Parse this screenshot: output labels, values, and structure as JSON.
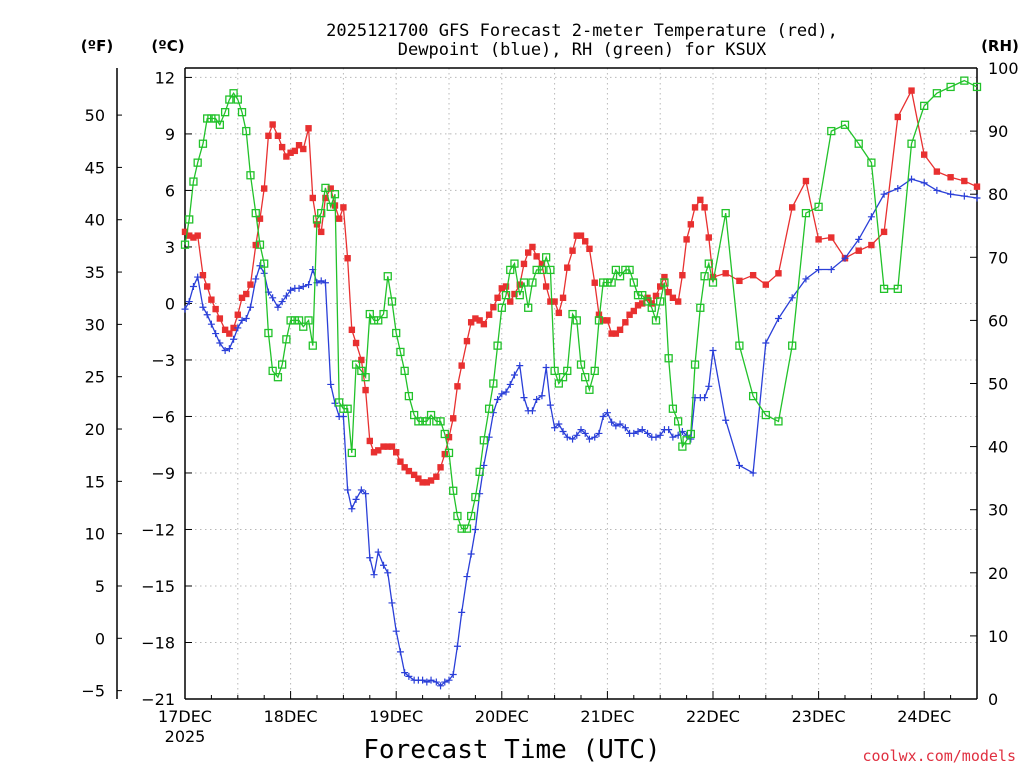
{
  "title_line1": "2025121700 GFS Forecast 2-meter Temperature (red),",
  "title_line2": "Dewpoint (blue), RH (green) for KSUX",
  "units": {
    "fahrenheit": "(ºF)",
    "celsius": "(ºC)",
    "rh": "(RH)"
  },
  "xlabel": "Forecast Time (UTC)",
  "credit": "coolwx.com/models",
  "colors": {
    "temperature": "#e83030",
    "dewpoint": "#2a3fd8",
    "rh": "#22c22a",
    "grid": "#b8b8b8",
    "credit": "#e03040"
  },
  "chart_data": {
    "type": "line",
    "title": "2025121700 GFS Forecast 2-meter Temperature (red), Dewpoint (blue), RH (green) for KSUX",
    "x_unit": "days since 2025-12-17 00 UTC",
    "xlim": [
      0,
      7.5
    ],
    "x_ticks": [
      {
        "x": 0,
        "label": "17DEC",
        "sublabel": "2025"
      },
      {
        "x": 1,
        "label": "18DEC"
      },
      {
        "x": 2,
        "label": "19DEC"
      },
      {
        "x": 3,
        "label": "20DEC"
      },
      {
        "x": 4,
        "label": "21DEC"
      },
      {
        "x": 5,
        "label": "22DEC"
      },
      {
        "x": 6,
        "label": "23DEC"
      },
      {
        "x": 7,
        "label": "24DEC"
      }
    ],
    "celsius_axis": {
      "min": -21,
      "max": 12.5,
      "ticks": [
        12,
        9,
        6,
        3,
        0,
        -3,
        -6,
        -9,
        -12,
        -15,
        -18,
        -21
      ],
      "labels": [
        "12",
        "9",
        "6",
        "3",
        "0",
        "−3",
        "−6",
        "−9",
        "−12",
        "−15",
        "−18",
        "−21"
      ]
    },
    "fahrenheit_axis": {
      "ticks": [
        50,
        45,
        40,
        35,
        30,
        25,
        20,
        15,
        10,
        5,
        0,
        -5
      ],
      "labels": [
        "50",
        "45",
        "40",
        "35",
        "30",
        "25",
        "20",
        "15",
        "10",
        "5",
        "0",
        "−5"
      ]
    },
    "rh_axis": {
      "min": 0,
      "max": 100,
      "ticks": [
        100,
        90,
        80,
        70,
        60,
        50,
        40,
        30,
        20,
        10,
        0
      ],
      "labels": [
        "100",
        "90",
        "80",
        "70",
        "60",
        "50",
        "40",
        "30",
        "20",
        "10",
        "0"
      ]
    },
    "series": [
      {
        "name": "Temperature",
        "unit": "C",
        "axis": "celsius",
        "marker": "filled-square",
        "x": [
          0,
          0.04,
          0.08,
          0.12,
          0.17,
          0.21,
          0.25,
          0.29,
          0.33,
          0.38,
          0.42,
          0.46,
          0.5,
          0.54,
          0.58,
          0.62,
          0.67,
          0.71,
          0.75,
          0.79,
          0.83,
          0.88,
          0.92,
          0.96,
          1.0,
          1.04,
          1.08,
          1.12,
          1.17,
          1.21,
          1.25,
          1.29,
          1.33,
          1.38,
          1.42,
          1.46,
          1.5,
          1.54,
          1.58,
          1.62,
          1.67,
          1.71,
          1.75,
          1.79,
          1.83,
          1.88,
          1.92,
          1.96,
          2.0,
          2.04,
          2.08,
          2.12,
          2.17,
          2.21,
          2.25,
          2.29,
          2.33,
          2.38,
          2.42,
          2.46,
          2.5,
          2.54,
          2.58,
          2.62,
          2.67,
          2.71,
          2.75,
          2.79,
          2.83,
          2.88,
          2.92,
          2.96,
          3.0,
          3.04,
          3.08,
          3.12,
          3.17,
          3.21,
          3.25,
          3.29,
          3.33,
          3.38,
          3.42,
          3.46,
          3.5,
          3.54,
          3.58,
          3.62,
          3.67,
          3.71,
          3.75,
          3.79,
          3.83,
          3.88,
          3.92,
          3.96,
          4.0,
          4.04,
          4.08,
          4.12,
          4.17,
          4.21,
          4.25,
          4.29,
          4.33,
          4.38,
          4.42,
          4.46,
          4.5,
          4.54,
          4.58,
          4.62,
          4.67,
          4.71,
          4.75,
          4.79,
          4.83,
          4.88,
          4.92,
          4.96,
          5.0,
          5.12,
          5.25,
          5.38,
          5.5,
          5.62,
          5.75,
          5.88,
          6.0,
          6.12,
          6.25,
          6.38,
          6.5,
          6.62,
          6.75,
          6.88,
          7.0,
          7.12,
          7.25,
          7.38,
          7.5
        ],
        "values": [
          3.8,
          3.6,
          3.5,
          3.6,
          1.5,
          0.9,
          0.2,
          -0.3,
          -0.8,
          -1.4,
          -1.6,
          -1.3,
          -0.6,
          0.3,
          0.5,
          1.0,
          3.1,
          4.5,
          6.1,
          8.9,
          9.5,
          8.9,
          8.3,
          7.8,
          8.0,
          8.1,
          8.4,
          8.2,
          9.3,
          5.6,
          4.2,
          3.8,
          5.6,
          6.1,
          5.2,
          4.5,
          5.1,
          2.4,
          -1.4,
          -2.1,
          -3.0,
          -4.6,
          -7.3,
          -7.9,
          -7.8,
          -7.6,
          -7.6,
          -7.6,
          -7.9,
          -8.4,
          -8.7,
          -8.9,
          -9.1,
          -9.3,
          -9.5,
          -9.5,
          -9.4,
          -9.2,
          -8.7,
          -8.0,
          -7.1,
          -6.1,
          -4.4,
          -3.3,
          -2.0,
          -1.0,
          -0.8,
          -0.9,
          -1.1,
          -0.6,
          -0.2,
          0.3,
          0.8,
          0.9,
          0.1,
          0.5,
          1.0,
          2.1,
          2.7,
          3.0,
          2.5,
          2.1,
          0.9,
          0.1,
          0.1,
          -0.5,
          0.3,
          1.9,
          2.8,
          3.6,
          3.6,
          3.3,
          2.9,
          1.1,
          -0.6,
          -0.9,
          -0.9,
          -1.6,
          -1.6,
          -1.4,
          -1.0,
          -0.6,
          -0.4,
          -0.1,
          0.0,
          0.3,
          0.0,
          0.4,
          0.9,
          1.4,
          0.6,
          0.3,
          0.1,
          1.5,
          3.4,
          4.2,
          5.1,
          5.5,
          5.1,
          3.5,
          1.4,
          1.6,
          1.2,
          1.5,
          1.0,
          1.6,
          5.1,
          6.5,
          3.4,
          3.5,
          2.4,
          2.8,
          3.1,
          3.8,
          9.9,
          11.3,
          7.9,
          7.0,
          6.7,
          6.5,
          6.2
        ]
      },
      {
        "name": "Dewpoint",
        "unit": "C",
        "axis": "celsius",
        "marker": "plus",
        "x": [
          0,
          0.04,
          0.08,
          0.12,
          0.17,
          0.21,
          0.25,
          0.29,
          0.33,
          0.38,
          0.42,
          0.46,
          0.5,
          0.54,
          0.58,
          0.62,
          0.67,
          0.71,
          0.75,
          0.79,
          0.83,
          0.88,
          0.92,
          0.96,
          1.0,
          1.04,
          1.08,
          1.12,
          1.17,
          1.21,
          1.25,
          1.29,
          1.33,
          1.38,
          1.42,
          1.46,
          1.5,
          1.54,
          1.58,
          1.62,
          1.67,
          1.71,
          1.75,
          1.79,
          1.83,
          1.88,
          1.92,
          1.96,
          2.0,
          2.04,
          2.08,
          2.12,
          2.17,
          2.21,
          2.25,
          2.29,
          2.33,
          2.38,
          2.42,
          2.46,
          2.5,
          2.54,
          2.58,
          2.62,
          2.67,
          2.71,
          2.75,
          2.79,
          2.83,
          2.88,
          2.92,
          2.96,
          3.0,
          3.04,
          3.08,
          3.12,
          3.17,
          3.21,
          3.25,
          3.29,
          3.33,
          3.38,
          3.42,
          3.46,
          3.5,
          3.54,
          3.58,
          3.62,
          3.67,
          3.71,
          3.75,
          3.79,
          3.83,
          3.88,
          3.92,
          3.96,
          4.0,
          4.04,
          4.08,
          4.12,
          4.17,
          4.21,
          4.25,
          4.29,
          4.33,
          4.38,
          4.42,
          4.46,
          4.5,
          4.54,
          4.58,
          4.62,
          4.67,
          4.71,
          4.75,
          4.79,
          4.83,
          4.88,
          4.92,
          4.96,
          5.0,
          5.12,
          5.25,
          5.38,
          5.5,
          5.62,
          5.75,
          5.88,
          6.0,
          6.12,
          6.25,
          6.38,
          6.5,
          6.62,
          6.75,
          6.88,
          7.0,
          7.12,
          7.25,
          7.38,
          7.5
        ],
        "values": [
          -0.3,
          0.1,
          0.9,
          1.4,
          -0.2,
          -0.6,
          -1.1,
          -1.6,
          -2.1,
          -2.5,
          -2.4,
          -1.9,
          -1.3,
          -0.9,
          -0.8,
          -0.2,
          1.3,
          2.0,
          1.6,
          0.6,
          0.3,
          -0.2,
          0.1,
          0.4,
          0.7,
          0.8,
          0.8,
          0.9,
          1.0,
          1.8,
          1.1,
          1.2,
          1.1,
          -4.3,
          -5.3,
          -6.0,
          -6.0,
          -9.9,
          -10.9,
          -10.4,
          -9.9,
          -10.1,
          -13.5,
          -14.4,
          -13.2,
          -13.9,
          -14.3,
          -15.9,
          -17.4,
          -18.5,
          -19.6,
          -19.8,
          -20.0,
          -20.0,
          -20.0,
          -20.1,
          -20.0,
          -20.1,
          -20.3,
          -20.1,
          -20.0,
          -19.7,
          -18.2,
          -16.4,
          -14.5,
          -13.3,
          -12.0,
          -10.1,
          -8.6,
          -7.1,
          -5.8,
          -5.1,
          -4.8,
          -4.7,
          -4.3,
          -3.8,
          -3.3,
          -5.0,
          -5.7,
          -5.7,
          -5.1,
          -4.9,
          -3.4,
          -5.4,
          -6.6,
          -6.4,
          -6.8,
          -7.1,
          -7.2,
          -7.0,
          -6.7,
          -6.9,
          -7.2,
          -7.1,
          -6.9,
          -6.0,
          -5.8,
          -6.3,
          -6.5,
          -6.4,
          -6.6,
          -6.9,
          -6.9,
          -6.8,
          -6.7,
          -6.9,
          -7.1,
          -7.1,
          -7.0,
          -6.7,
          -6.7,
          -7.1,
          -7.0,
          -6.8,
          -7.0,
          -7.2,
          -5.0,
          -5.0,
          -5.0,
          -4.4,
          -2.5,
          -6.2,
          -8.6,
          -9.0,
          -2.1,
          -0.8,
          0.3,
          1.3,
          1.8,
          1.8,
          2.4,
          3.4,
          4.6,
          5.8,
          6.1,
          6.6,
          6.4,
          6.0,
          5.8,
          5.7,
          5.6
        ]
      },
      {
        "name": "RH",
        "unit": "%",
        "axis": "rh",
        "marker": "open-square",
        "x": [
          0,
          0.04,
          0.08,
          0.12,
          0.17,
          0.21,
          0.25,
          0.29,
          0.33,
          0.38,
          0.42,
          0.46,
          0.5,
          0.54,
          0.58,
          0.62,
          0.67,
          0.71,
          0.75,
          0.79,
          0.83,
          0.88,
          0.92,
          0.96,
          1.0,
          1.04,
          1.08,
          1.12,
          1.17,
          1.21,
          1.25,
          1.29,
          1.33,
          1.38,
          1.42,
          1.46,
          1.5,
          1.54,
          1.58,
          1.62,
          1.67,
          1.71,
          1.75,
          1.79,
          1.83,
          1.88,
          1.92,
          1.96,
          2.0,
          2.04,
          2.08,
          2.12,
          2.17,
          2.21,
          2.25,
          2.29,
          2.33,
          2.38,
          2.42,
          2.46,
          2.5,
          2.54,
          2.58,
          2.62,
          2.67,
          2.71,
          2.75,
          2.79,
          2.83,
          2.88,
          2.92,
          2.96,
          3.0,
          3.04,
          3.08,
          3.12,
          3.17,
          3.21,
          3.25,
          3.29,
          3.33,
          3.38,
          3.42,
          3.46,
          3.5,
          3.54,
          3.58,
          3.62,
          3.67,
          3.71,
          3.75,
          3.79,
          3.83,
          3.88,
          3.92,
          3.96,
          4.0,
          4.04,
          4.08,
          4.12,
          4.17,
          4.21,
          4.25,
          4.29,
          4.33,
          4.38,
          4.42,
          4.46,
          4.5,
          4.54,
          4.58,
          4.62,
          4.67,
          4.71,
          4.75,
          4.79,
          4.83,
          4.88,
          4.92,
          4.96,
          5.0,
          5.12,
          5.25,
          5.38,
          5.5,
          5.62,
          5.75,
          5.88,
          6.0,
          6.12,
          6.25,
          6.38,
          6.5,
          6.62,
          6.75,
          6.88,
          7.0,
          7.12,
          7.25,
          7.38,
          7.5
        ],
        "values": [
          72,
          76,
          82,
          85,
          88,
          92,
          92,
          92,
          91,
          93,
          95,
          96,
          95,
          93,
          90,
          83,
          77,
          72,
          69,
          58,
          52,
          51,
          53,
          57,
          60,
          60,
          60,
          59,
          60,
          56,
          76,
          77,
          81,
          78,
          80,
          47,
          46,
          46,
          39,
          53,
          52,
          51,
          61,
          60,
          60,
          61,
          67,
          63,
          58,
          55,
          52,
          48,
          45,
          44,
          44,
          44,
          45,
          44,
          44,
          42,
          39,
          33,
          29,
          27,
          27,
          29,
          32,
          36,
          41,
          46,
          50,
          56,
          62,
          64,
          68,
          69,
          64,
          66,
          62,
          66,
          68,
          68,
          70,
          68,
          52,
          50,
          51,
          52,
          61,
          60,
          53,
          51,
          49,
          52,
          60,
          66,
          66,
          66,
          68,
          67,
          68,
          68,
          66,
          64,
          64,
          63,
          62,
          60,
          63,
          66,
          54,
          46,
          44,
          40,
          41,
          42,
          53,
          62,
          67,
          69,
          66,
          77,
          56,
          48,
          45,
          44,
          56,
          77,
          78,
          90,
          91,
          88,
          85,
          65,
          65,
          88,
          94,
          96,
          97,
          98,
          97
        ]
      }
    ]
  }
}
